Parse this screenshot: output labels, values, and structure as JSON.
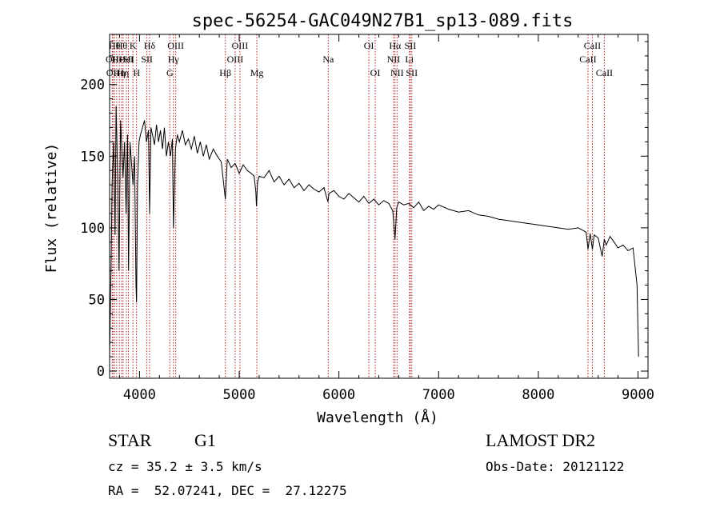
{
  "chart_data": {
    "type": "line",
    "title": "spec-56254-GAC049N27B1_sp13-089.fits",
    "xlabel": "Wavelength (Å)",
    "ylabel": "Flux (relative)",
    "xlim": [
      3700,
      9100
    ],
    "ylim": [
      -5,
      235
    ],
    "xticks": [
      4000,
      5000,
      6000,
      7000,
      8000,
      9000
    ],
    "yticks": [
      0,
      50,
      100,
      150,
      200
    ],
    "grid": false,
    "line_color": "#000000",
    "marker_color": "#b22222",
    "series": [
      {
        "x": [
          3700,
          3715,
          3725,
          3740,
          3755,
          3765,
          3780,
          3795,
          3810,
          3825,
          3835,
          3850,
          3865,
          3880,
          3890,
          3905,
          3920,
          3935,
          3950,
          3965,
          3970,
          3980,
          3995,
          4010,
          4030,
          4050,
          4070,
          4090,
          4101,
          4115,
          4130,
          4150,
          4170,
          4190,
          4210,
          4230,
          4250,
          4270,
          4290,
          4310,
          4330,
          4340,
          4360,
          4380,
          4400,
          4430,
          4460,
          4490,
          4520,
          4550,
          4580,
          4610,
          4640,
          4670,
          4700,
          4740,
          4780,
          4820,
          4861,
          4880,
          4920,
          4960,
          5000,
          5040,
          5080,
          5120,
          5150,
          5167,
          5173,
          5184,
          5200,
          5250,
          5300,
          5350,
          5400,
          5450,
          5500,
          5550,
          5600,
          5650,
          5700,
          5750,
          5800,
          5850,
          5890,
          5900,
          5950,
          6000,
          6050,
          6100,
          6150,
          6200,
          6250,
          6300,
          6350,
          6400,
          6450,
          6500,
          6540,
          6563,
          6580,
          6600,
          6650,
          6700,
          6750,
          6800,
          6850,
          6900,
          6950,
          7000,
          7100,
          7200,
          7300,
          7400,
          7500,
          7600,
          7700,
          7800,
          7900,
          8000,
          8100,
          8200,
          8300,
          8400,
          8480,
          8498,
          8520,
          8542,
          8560,
          8600,
          8640,
          8662,
          8680,
          8720,
          8760,
          8800,
          8850,
          8900,
          8950,
          8990,
          9005
        ],
        "y": [
          10,
          75,
          130,
          160,
          95,
          185,
          140,
          70,
          175,
          150,
          135,
          160,
          110,
          165,
          70,
          160,
          145,
          130,
          150,
          60,
          48,
          130,
          160,
          165,
          170,
          175,
          160,
          168,
          110,
          170,
          165,
          158,
          172,
          160,
          168,
          155,
          170,
          150,
          160,
          150,
          162,
          100,
          155,
          165,
          160,
          168,
          158,
          162,
          155,
          164,
          152,
          160,
          150,
          158,
          148,
          155,
          150,
          146,
          120,
          148,
          142,
          145,
          138,
          144,
          140,
          138,
          136,
          125,
          115,
          132,
          136,
          135,
          140,
          132,
          136,
          130,
          134,
          128,
          131,
          126,
          130,
          127,
          125,
          128,
          118,
          124,
          126,
          122,
          120,
          124,
          121,
          118,
          122,
          117,
          120,
          116,
          119,
          117,
          112,
          92,
          114,
          118,
          116,
          117,
          114,
          118,
          112,
          115,
          113,
          116,
          113,
          111,
          112,
          109,
          108,
          106,
          105,
          104,
          103,
          102,
          101,
          100,
          99,
          100,
          97,
          85,
          96,
          85,
          95,
          93,
          80,
          92,
          88,
          94,
          90,
          86,
          88,
          84,
          86,
          60,
          10
        ]
      }
    ],
    "lines": [
      {
        "x": 3727,
        "label": "OII",
        "row": 1
      },
      {
        "x": 3734,
        "label": "OII",
        "row": 2
      },
      {
        "x": 3750,
        "label": "Hθ",
        "row": 0
      },
      {
        "x": 3771,
        "label": "Hι",
        "row": 1
      },
      {
        "x": 3798,
        "label": "Hη",
        "row": 2
      },
      {
        "x": 3820,
        "label": "Hθ",
        "row": 0
      },
      {
        "x": 3835,
        "label": "Hη",
        "row": 2
      },
      {
        "x": 3869,
        "label": "HeI",
        "row": 1
      },
      {
        "x": 3889,
        "label": "SII",
        "row": 1
      },
      {
        "x": 3934,
        "label": "K",
        "row": 0
      },
      {
        "x": 3970,
        "label": "H",
        "row": 2
      },
      {
        "x": 4101,
        "label": "Hδ",
        "row": 0
      },
      {
        "x": 4074,
        "label": "SII",
        "row": 1
      },
      {
        "x": 4304,
        "label": "G",
        "row": 2
      },
      {
        "x": 4340,
        "label": "Hγ",
        "row": 1
      },
      {
        "x": 4363,
        "label": "OIII",
        "row": 0
      },
      {
        "x": 4861,
        "label": "Hβ",
        "row": 2
      },
      {
        "x": 4959,
        "label": "OIII",
        "row": 1
      },
      {
        "x": 5007,
        "label": "OIII",
        "row": 0
      },
      {
        "x": 5177,
        "label": "Mg",
        "row": 2
      },
      {
        "x": 5893,
        "label": "Na",
        "row": 1
      },
      {
        "x": 6300,
        "label": "OI",
        "row": 0
      },
      {
        "x": 6364,
        "label": "OI",
        "row": 2
      },
      {
        "x": 6548,
        "label": "NII",
        "row": 1
      },
      {
        "x": 6563,
        "label": "Hα",
        "row": 0
      },
      {
        "x": 6583,
        "label": "NII",
        "row": 2
      },
      {
        "x": 6707,
        "label": "Li",
        "row": 1
      },
      {
        "x": 6716,
        "label": "SII",
        "row": 0
      },
      {
        "x": 6731,
        "label": "SII",
        "row": 2
      },
      {
        "x": 8498,
        "label": "CaII",
        "row": 1
      },
      {
        "x": 8542,
        "label": "CaII",
        "row": 0
      },
      {
        "x": 8662,
        "label": "CaII",
        "row": 2
      }
    ]
  },
  "info": {
    "class_label": "STAR",
    "subclass_label": "G1",
    "survey": "LAMOST DR2",
    "cz": "cz = 35.2 ± 3.5 km/s",
    "obs_date": "Obs-Date: 20121122",
    "radec": "RA =  52.07241, DEC =  27.12275"
  }
}
